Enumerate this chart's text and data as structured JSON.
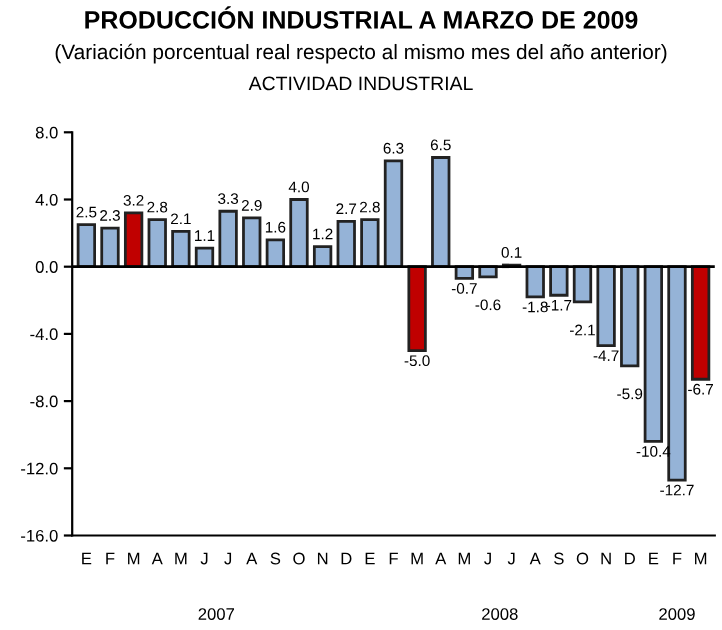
{
  "chart_data": {
    "type": "bar",
    "title": "PRODUCCIÓN INDUSTRIAL A MARZO DE 2009",
    "subtitle": "(Variación porcentual real respecto al mismo mes del año anterior)",
    "annotations": [
      "ACTIVIDAD INDUSTRIAL",
      "2007",
      "2008",
      "2009"
    ],
    "categories": [
      "E",
      "F",
      "M",
      "A",
      "M",
      "J",
      "J",
      "A",
      "S",
      "O",
      "N",
      "D",
      "E",
      "F",
      "M",
      "A",
      "M",
      "J",
      "J",
      "A",
      "S",
      "O",
      "N",
      "D",
      "E",
      "F",
      "M"
    ],
    "values": [
      2.5,
      2.3,
      3.2,
      2.8,
      2.1,
      1.1,
      3.3,
      2.9,
      1.6,
      4.0,
      1.2,
      2.7,
      2.8,
      6.3,
      -5.0,
      6.5,
      -0.7,
      -0.6,
      0.1,
      -1.8,
      -1.7,
      -2.1,
      -4.7,
      -5.9,
      -10.4,
      -12.7,
      -6.7
    ],
    "colors": [
      "#95b3d7",
      "#95b3d7",
      "#c00000",
      "#95b3d7",
      "#95b3d7",
      "#95b3d7",
      "#95b3d7",
      "#95b3d7",
      "#95b3d7",
      "#95b3d7",
      "#95b3d7",
      "#95b3d7",
      "#95b3d7",
      "#95b3d7",
      "#c00000",
      "#95b3d7",
      "#95b3d7",
      "#95b3d7",
      "#95b3d7",
      "#95b3d7",
      "#95b3d7",
      "#95b3d7",
      "#95b3d7",
      "#95b3d7",
      "#95b3d7",
      "#95b3d7",
      "#c00000"
    ],
    "ylim": [
      -16,
      8
    ],
    "yticks": [
      {
        "value": -16,
        "label": "-16.0"
      },
      {
        "value": -12,
        "label": "-12.0"
      },
      {
        "value": -8,
        "label": "-8.0"
      },
      {
        "value": -4,
        "label": "-4.0"
      },
      {
        "value": 0,
        "label": "0.0"
      },
      {
        "value": 4,
        "label": "4.0"
      },
      {
        "value": 8,
        "label": "8.0"
      }
    ],
    "value_labels": [
      "2.5",
      "2.3",
      "3.2",
      "2.8",
      "2.1",
      "1.1",
      "3.3",
      "2.9",
      "1.6",
      "4.0",
      "1.2",
      "2.7",
      "2.8",
      "6.3",
      "-5.0",
      "6.5",
      "-0.7",
      "-0.6",
      "0.1",
      "-1.8",
      "-1.7",
      "-2.1",
      "-4.7",
      "-5.9",
      "-10.4",
      "-12.7",
      "-6.7"
    ]
  }
}
